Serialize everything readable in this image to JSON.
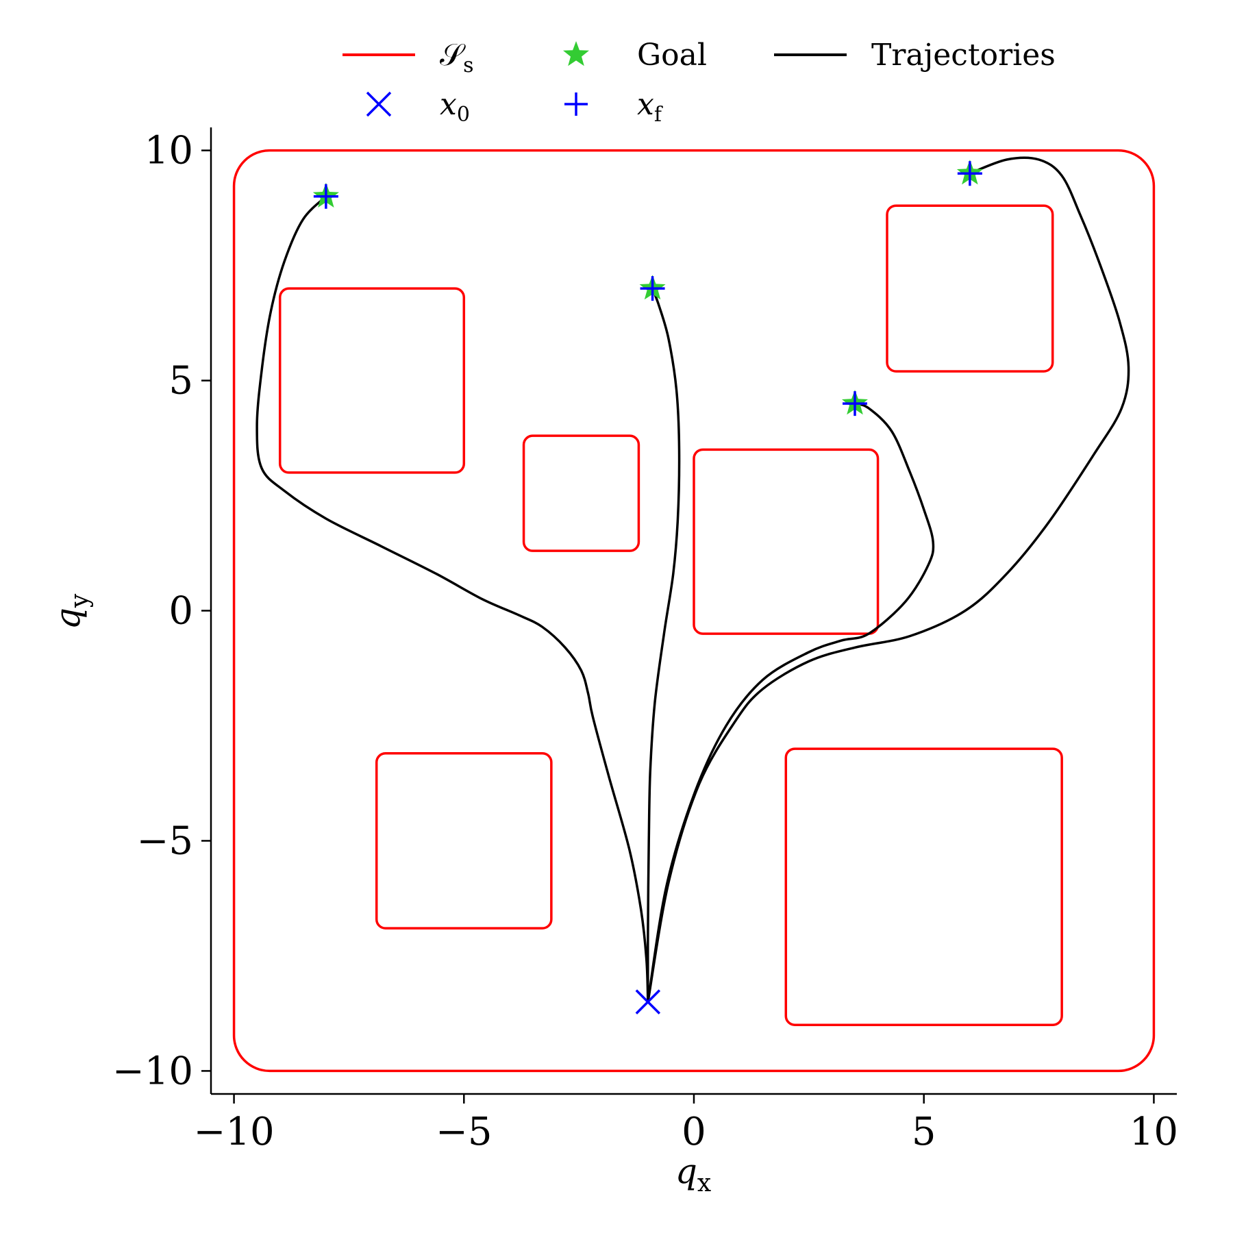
{
  "chart_data": {
    "type": "line",
    "xlabel": {
      "main": "q",
      "sub": "x"
    },
    "ylabel": {
      "main": "q",
      "sub": "y"
    },
    "xlim": [
      -10.5,
      10.5
    ],
    "ylim": [
      -10.5,
      10.5
    ],
    "xticks": [
      -10,
      -5,
      0,
      5,
      10
    ],
    "yticks": [
      -10,
      -5,
      0,
      5,
      10
    ],
    "xtick_labels": [
      "−10",
      "−5",
      "0",
      "5",
      "10"
    ],
    "ytick_labels": [
      "−10",
      "−5",
      "0",
      "5",
      "10"
    ],
    "grid": false,
    "legend": {
      "placement": "top-center",
      "ncol": 3,
      "entries": [
        {
          "key": "safe_set",
          "label_main": "𝒮",
          "label_sub": "s",
          "marker": "line",
          "color": "#ff0000"
        },
        {
          "key": "goal",
          "label_main": "Goal",
          "label_sub": "",
          "marker": "star",
          "color": "#33cc33"
        },
        {
          "key": "trajectories",
          "label_main": "Trajectories",
          "label_sub": "",
          "marker": "line",
          "color": "#000000"
        },
        {
          "key": "x0",
          "label_main": "x",
          "label_sub": "0",
          "marker": "x",
          "color": "#0000ff"
        },
        {
          "key": "xf",
          "label_main": "x",
          "label_sub": "f",
          "marker": "plus",
          "color": "#0000ff"
        }
      ]
    },
    "colors": {
      "safe_set": "#ff0000",
      "goal": "#33cc33",
      "trajectory": "#000000",
      "x0": "#0000ff",
      "xf": "#0000ff"
    },
    "safe_set": {
      "outer": {
        "x": [
          -10,
          10
        ],
        "y": [
          -10,
          10
        ]
      },
      "obstacles": [
        {
          "x": [
            -9,
            -5
          ],
          "y": [
            3,
            7
          ]
        },
        {
          "x": [
            -3.7,
            -1.2
          ],
          "y": [
            1.3,
            3.8
          ]
        },
        {
          "x": [
            0,
            4
          ],
          "y": [
            -0.5,
            3.5
          ]
        },
        {
          "x": [
            4.2,
            7.8
          ],
          "y": [
            5.2,
            8.8
          ]
        },
        {
          "x": [
            -6.9,
            -3.1
          ],
          "y": [
            -6.9,
            -3.1
          ]
        },
        {
          "x": [
            2,
            8
          ],
          "y": [
            -9,
            -3
          ]
        }
      ]
    },
    "x0": {
      "x": -1,
      "y": -8.5
    },
    "goals": [
      {
        "x": -8,
        "y": 9
      },
      {
        "x": -0.9,
        "y": 7
      },
      {
        "x": 3.5,
        "y": 4.5
      },
      {
        "x": 6,
        "y": 9.5
      }
    ],
    "xf": [
      {
        "x": -8,
        "y": 9
      },
      {
        "x": -0.9,
        "y": 7
      },
      {
        "x": 3.5,
        "y": 4.5
      },
      {
        "x": 6,
        "y": 9.5
      }
    ],
    "trajectories": [
      {
        "x": [
          -1.0,
          -1.03,
          -1.15,
          -1.4,
          -1.85,
          -2.2,
          -2.3,
          -2.45,
          -2.8,
          -3.3,
          -3.8,
          -4.6,
          -5.6,
          -6.8,
          -8.0,
          -8.9,
          -9.4,
          -9.5,
          -9.4,
          -9.2,
          -8.9,
          -8.5,
          -8.0
        ],
        "y": [
          -8.5,
          -7.6,
          -6.5,
          -5.2,
          -3.6,
          -2.3,
          -1.8,
          -1.3,
          -0.8,
          -0.35,
          -0.1,
          0.25,
          0.8,
          1.4,
          2.0,
          2.6,
          3.1,
          4.0,
          5.2,
          6.5,
          7.6,
          8.5,
          9.0
        ]
      },
      {
        "x": [
          -1.0,
          -1.0,
          -0.98,
          -0.95,
          -0.85,
          -0.65,
          -0.45,
          -0.35,
          -0.32,
          -0.38,
          -0.55,
          -0.75,
          -0.9
        ],
        "y": [
          -8.5,
          -7.0,
          -5.0,
          -3.5,
          -2.0,
          -0.5,
          0.8,
          2.0,
          3.5,
          4.8,
          5.9,
          6.6,
          7.0
        ]
      },
      {
        "x": [
          -1.0,
          -0.6,
          0.0,
          0.7,
          1.5,
          2.5,
          3.2,
          3.8,
          4.6,
          5.1,
          5.2,
          5.0,
          4.7,
          4.3,
          3.8,
          3.5
        ],
        "y": [
          -8.5,
          -6.0,
          -4.0,
          -2.5,
          -1.5,
          -0.9,
          -0.65,
          -0.5,
          0.2,
          1.0,
          1.5,
          2.2,
          3.0,
          3.9,
          4.4,
          4.5
        ]
      },
      {
        "x": [
          -1.0,
          -0.55,
          0.1,
          0.9,
          1.5,
          2.5,
          3.5,
          4.7,
          5.9,
          6.8,
          7.7,
          8.7,
          9.3,
          9.45,
          9.25,
          8.8,
          8.4,
          8.0,
          7.5,
          6.8,
          6.0
        ],
        "y": [
          -8.5,
          -5.9,
          -3.8,
          -2.4,
          -1.7,
          -1.1,
          -0.8,
          -0.55,
          0.0,
          0.8,
          1.9,
          3.4,
          4.4,
          5.3,
          6.3,
          7.6,
          8.6,
          9.45,
          9.8,
          9.8,
          9.5
        ]
      }
    ]
  }
}
